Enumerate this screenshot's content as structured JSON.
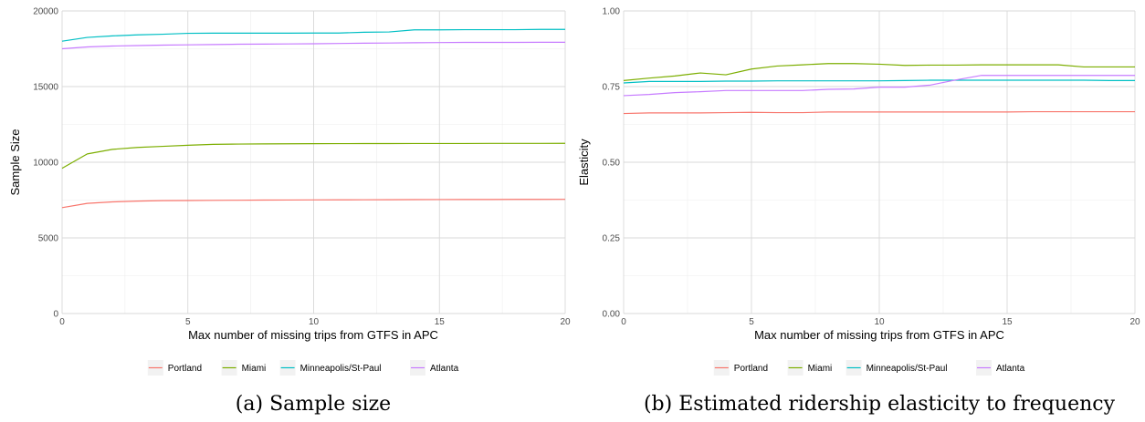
{
  "chart_data": [
    {
      "type": "line",
      "caption": "(a) Sample size",
      "xlabel": "Max number of missing trips from GTFS in APC",
      "ylabel": "Sample Size",
      "xlim": [
        0,
        20
      ],
      "ylim": [
        0,
        20000
      ],
      "x_ticks": [
        0,
        5,
        10,
        15,
        20
      ],
      "y_ticks": [
        0,
        5000,
        10000,
        15000,
        20000
      ],
      "y_tick_labels": [
        "0",
        "5000",
        "10000",
        "15000",
        "20000"
      ],
      "grid": true,
      "legend_position": "bottom",
      "x": [
        0,
        1,
        2,
        3,
        4,
        5,
        6,
        7,
        8,
        9,
        10,
        11,
        12,
        13,
        14,
        15,
        16,
        17,
        18,
        19,
        20
      ],
      "series": [
        {
          "name": "Portland",
          "color": "#F8766D",
          "values": [
            7000,
            7280,
            7380,
            7430,
            7460,
            7470,
            7480,
            7490,
            7500,
            7505,
            7510,
            7515,
            7520,
            7525,
            7530,
            7535,
            7540,
            7540,
            7545,
            7545,
            7550
          ]
        },
        {
          "name": "Miami",
          "color": "#7CAE00",
          "values": [
            9600,
            10550,
            10850,
            10980,
            11050,
            11120,
            11180,
            11200,
            11210,
            11220,
            11225,
            11230,
            11235,
            11235,
            11240,
            11240,
            11240,
            11245,
            11245,
            11245,
            11250
          ]
        },
        {
          "name": "Minneapolis/St-Paul",
          "color": "#00BFC4",
          "values": [
            18000,
            18250,
            18350,
            18420,
            18460,
            18520,
            18530,
            18530,
            18530,
            18530,
            18540,
            18540,
            18590,
            18610,
            18750,
            18750,
            18760,
            18760,
            18760,
            18780,
            18780
          ]
        },
        {
          "name": "Atlanta",
          "color": "#C77CFF",
          "values": [
            17500,
            17620,
            17680,
            17710,
            17740,
            17760,
            17780,
            17800,
            17810,
            17820,
            17830,
            17850,
            17870,
            17880,
            17900,
            17910,
            17920,
            17920,
            17920,
            17930,
            17930
          ]
        }
      ]
    },
    {
      "type": "line",
      "caption": "(b) Estimated ridership elasticity to frequency",
      "xlabel": "Max number of missing trips from GTFS in APC",
      "ylabel": "Elasticity",
      "xlim": [
        0,
        20
      ],
      "ylim": [
        0,
        1
      ],
      "x_ticks": [
        0,
        5,
        10,
        15,
        20
      ],
      "y_ticks": [
        0,
        0.25,
        0.5,
        0.75,
        1
      ],
      "y_tick_labels": [
        "0.00",
        "0.25",
        "0.50",
        "0.75",
        "1.00"
      ],
      "grid": true,
      "legend_position": "bottom",
      "x": [
        0,
        1,
        2,
        3,
        4,
        5,
        6,
        7,
        8,
        9,
        10,
        11,
        12,
        13,
        14,
        15,
        16,
        17,
        18,
        19,
        20
      ],
      "series": [
        {
          "name": "Portland",
          "color": "#F8766D",
          "values": [
            0.661,
            0.663,
            0.663,
            0.663,
            0.664,
            0.665,
            0.664,
            0.664,
            0.666,
            0.666,
            0.666,
            0.666,
            0.666,
            0.666,
            0.666,
            0.666,
            0.667,
            0.667,
            0.667,
            0.667,
            0.667
          ]
        },
        {
          "name": "Miami",
          "color": "#7CAE00",
          "values": [
            0.77,
            0.778,
            0.785,
            0.795,
            0.789,
            0.808,
            0.818,
            0.822,
            0.826,
            0.826,
            0.824,
            0.82,
            0.821,
            0.821,
            0.822,
            0.822,
            0.822,
            0.822,
            0.815,
            0.815,
            0.815
          ]
        },
        {
          "name": "Minneapolis/St-Paul",
          "color": "#00BFC4",
          "values": [
            0.762,
            0.767,
            0.767,
            0.767,
            0.768,
            0.768,
            0.769,
            0.769,
            0.769,
            0.769,
            0.769,
            0.77,
            0.771,
            0.771,
            0.771,
            0.771,
            0.771,
            0.771,
            0.771,
            0.77,
            0.77
          ]
        },
        {
          "name": "Atlanta",
          "color": "#C77CFF",
          "values": [
            0.72,
            0.724,
            0.73,
            0.733,
            0.737,
            0.737,
            0.737,
            0.737,
            0.741,
            0.742,
            0.748,
            0.748,
            0.755,
            0.772,
            0.787,
            0.787,
            0.787,
            0.787,
            0.787,
            0.787,
            0.787
          ]
        }
      ]
    }
  ]
}
